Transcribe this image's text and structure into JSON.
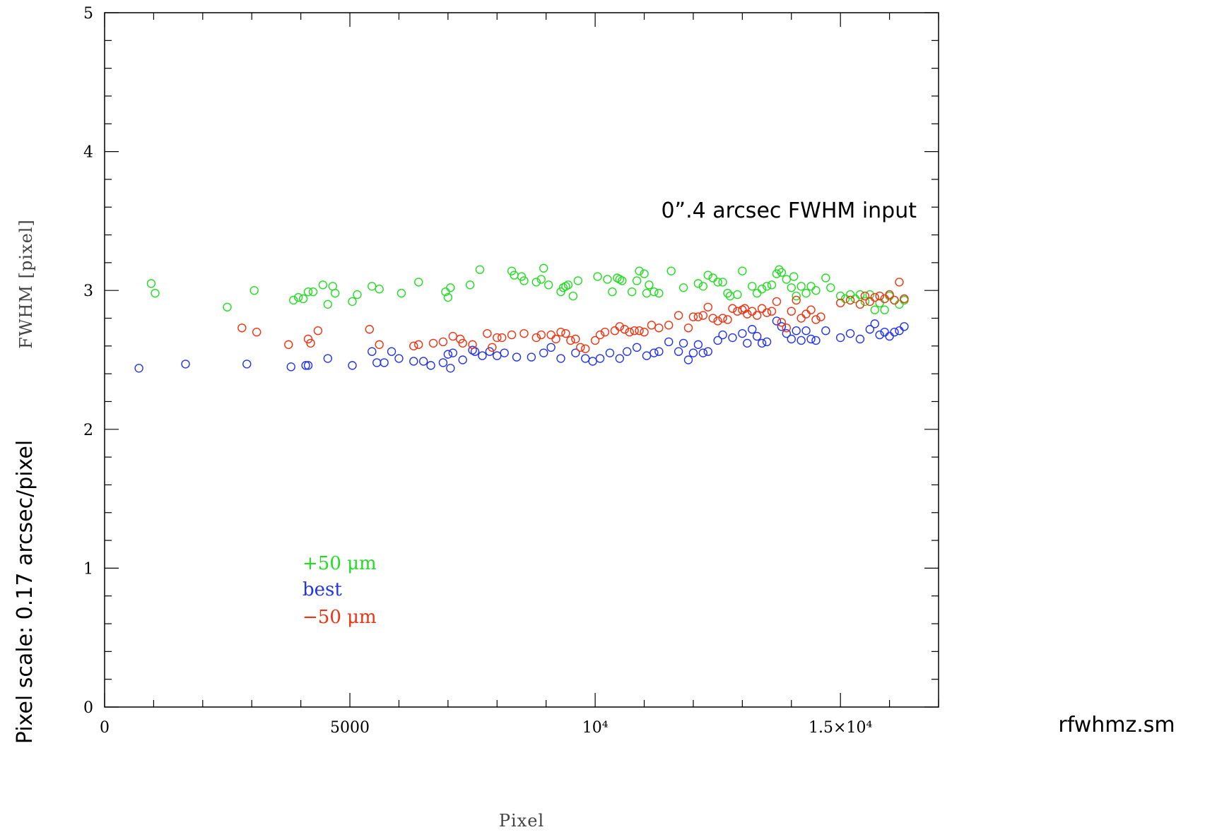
{
  "chart_data": {
    "type": "scatter",
    "title": "",
    "xlabel": "Pixel",
    "ylabel": "FWHM [pixel]",
    "xlim": [
      0,
      17000
    ],
    "ylim": [
      0,
      5
    ],
    "x_ticks": [
      0,
      5000,
      10000,
      15000
    ],
    "x_tick_labels": [
      "0",
      "5000",
      "10⁴",
      "1.5×10⁴"
    ],
    "y_ticks": [
      0,
      1,
      2,
      3,
      4,
      5
    ],
    "y_tick_labels": [
      "0",
      "1",
      "2",
      "3",
      "4",
      "5"
    ],
    "marker": "open-circle",
    "annotation": "0”.4 arcsec FWHM input",
    "side_label": "Pixel scale:  0.17 arcsec/pixel",
    "script_label": "rfwhmz.sm",
    "series": [
      {
        "name": "+50 μm",
        "color": "#22dd22",
        "x": [
          950,
          1030,
          2500,
          3050,
          3850,
          3950,
          4050,
          4150,
          4250,
          4450,
          4550,
          4650,
          4700,
          5050,
          5150,
          5450,
          5600,
          6050,
          6400,
          6950,
          7000,
          7050,
          7450,
          7650,
          8300,
          8350,
          8500,
          8550,
          8800,
          8900,
          8950,
          9050,
          9300,
          9350,
          9400,
          9450,
          9550,
          9650,
          10050,
          10250,
          10350,
          10450,
          10500,
          10550,
          10750,
          10850,
          10900,
          11000,
          11050,
          11100,
          11200,
          11300,
          11550,
          11800,
          12100,
          12200,
          12300,
          12400,
          12500,
          12600,
          12700,
          12750,
          12900,
          13000,
          13200,
          13300,
          13400,
          13500,
          13600,
          13700,
          13750,
          13800,
          13900,
          14000,
          14050,
          14100,
          14200,
          14300,
          14400,
          14500,
          14700,
          14800,
          15000,
          15100,
          15200,
          15300,
          15400,
          15500,
          15600,
          15700,
          15800,
          15900,
          16000,
          16100,
          16200,
          16300
        ],
        "y": [
          3.05,
          2.98,
          2.88,
          3.0,
          2.93,
          2.95,
          2.94,
          2.99,
          2.99,
          3.04,
          2.9,
          3.03,
          2.98,
          2.92,
          2.97,
          3.03,
          3.01,
          2.98,
          3.06,
          2.99,
          2.95,
          3.02,
          3.04,
          3.15,
          3.14,
          3.11,
          3.1,
          3.07,
          3.06,
          3.08,
          3.16,
          3.04,
          2.99,
          3.02,
          3.03,
          3.04,
          2.96,
          3.07,
          3.1,
          3.08,
          2.99,
          3.09,
          3.08,
          3.07,
          2.99,
          3.07,
          3.14,
          3.12,
          2.98,
          3.04,
          2.99,
          2.98,
          3.14,
          3.02,
          3.05,
          3.03,
          3.11,
          3.09,
          3.06,
          3.06,
          2.98,
          2.96,
          2.97,
          3.14,
          3.03,
          2.98,
          3.01,
          3.03,
          3.04,
          3.12,
          3.15,
          3.13,
          3.08,
          3.02,
          3.1,
          2.96,
          3.03,
          2.98,
          3.03,
          3.0,
          3.09,
          3.02,
          2.96,
          2.94,
          2.97,
          2.94,
          2.97,
          2.92,
          2.97,
          2.86,
          2.91,
          2.86,
          2.96,
          2.93,
          2.9,
          2.93
        ]
      },
      {
        "name": "best",
        "color": "#2233ee",
        "x": [
          700,
          1650,
          2900,
          3800,
          4100,
          4150,
          4550,
          5050,
          5450,
          5550,
          5700,
          5850,
          6000,
          6300,
          6500,
          6650,
          6900,
          7000,
          7050,
          7100,
          7300,
          7500,
          7550,
          7700,
          7850,
          8000,
          8150,
          8400,
          8700,
          8950,
          9100,
          9300,
          9600,
          9800,
          9950,
          10100,
          10300,
          10500,
          10650,
          10850,
          11050,
          11200,
          11300,
          11500,
          11700,
          11800,
          11900,
          12000,
          12100,
          12200,
          12300,
          12500,
          12600,
          12800,
          13000,
          13100,
          13200,
          13300,
          13400,
          13500,
          13700,
          13800,
          13900,
          14000,
          14100,
          14200,
          14300,
          14400,
          14500,
          14700,
          15000,
          15200,
          15400,
          15600,
          15700,
          15800,
          15900,
          16000,
          16100,
          16200,
          16300
        ],
        "y": [
          2.44,
          2.47,
          2.47,
          2.45,
          2.46,
          2.46,
          2.51,
          2.46,
          2.56,
          2.48,
          2.48,
          2.56,
          2.51,
          2.49,
          2.49,
          2.46,
          2.48,
          2.54,
          2.44,
          2.55,
          2.5,
          2.57,
          2.56,
          2.53,
          2.56,
          2.53,
          2.55,
          2.52,
          2.52,
          2.55,
          2.59,
          2.51,
          2.55,
          2.51,
          2.49,
          2.51,
          2.55,
          2.51,
          2.56,
          2.59,
          2.53,
          2.55,
          2.56,
          2.63,
          2.56,
          2.62,
          2.5,
          2.55,
          2.61,
          2.55,
          2.56,
          2.64,
          2.68,
          2.66,
          2.69,
          2.62,
          2.72,
          2.67,
          2.62,
          2.63,
          2.78,
          2.74,
          2.69,
          2.65,
          2.71,
          2.64,
          2.71,
          2.65,
          2.64,
          2.71,
          2.66,
          2.69,
          2.65,
          2.72,
          2.76,
          2.68,
          2.7,
          2.67,
          2.7,
          2.71,
          2.74
        ]
      },
      {
        "name": "−50 μm",
        "color": "#ee3311",
        "x": [
          2800,
          3100,
          3750,
          4150,
          4200,
          4350,
          5400,
          5600,
          6300,
          6400,
          6700,
          6900,
          7100,
          7250,
          7300,
          7500,
          7800,
          7900,
          8000,
          8100,
          8300,
          8550,
          8800,
          8900,
          9100,
          9200,
          9300,
          9400,
          9500,
          9600,
          9700,
          9800,
          10000,
          10100,
          10200,
          10400,
          10500,
          10600,
          10700,
          10800,
          10900,
          11000,
          11150,
          11300,
          11500,
          11700,
          11900,
          12000,
          12100,
          12200,
          12300,
          12400,
          12500,
          12600,
          12700,
          12800,
          12900,
          13000,
          13050,
          13100,
          13200,
          13300,
          13400,
          13500,
          13600,
          13700,
          13800,
          13900,
          14000,
          14100,
          14200,
          14300,
          14400,
          14500,
          14600,
          15000,
          15200,
          15400,
          15500,
          15600,
          15700,
          15800,
          15900,
          16000,
          16100,
          16200,
          16300
        ],
        "y": [
          2.73,
          2.7,
          2.61,
          2.65,
          2.62,
          2.71,
          2.72,
          2.61,
          2.6,
          2.61,
          2.62,
          2.63,
          2.67,
          2.65,
          2.62,
          2.61,
          2.69,
          2.59,
          2.66,
          2.66,
          2.68,
          2.69,
          2.66,
          2.68,
          2.68,
          2.65,
          2.7,
          2.69,
          2.64,
          2.65,
          2.59,
          2.58,
          2.64,
          2.68,
          2.7,
          2.71,
          2.74,
          2.72,
          2.7,
          2.71,
          2.71,
          2.7,
          2.75,
          2.73,
          2.75,
          2.82,
          2.73,
          2.81,
          2.81,
          2.82,
          2.88,
          2.8,
          2.78,
          2.8,
          2.79,
          2.87,
          2.85,
          2.86,
          2.87,
          2.83,
          2.85,
          2.82,
          2.87,
          2.84,
          2.85,
          2.92,
          2.77,
          2.73,
          2.85,
          2.93,
          2.8,
          2.83,
          2.86,
          2.79,
          2.81,
          2.91,
          2.93,
          2.9,
          2.96,
          2.92,
          2.95,
          2.96,
          2.94,
          2.97,
          2.93,
          3.06,
          2.94
        ]
      }
    ]
  }
}
